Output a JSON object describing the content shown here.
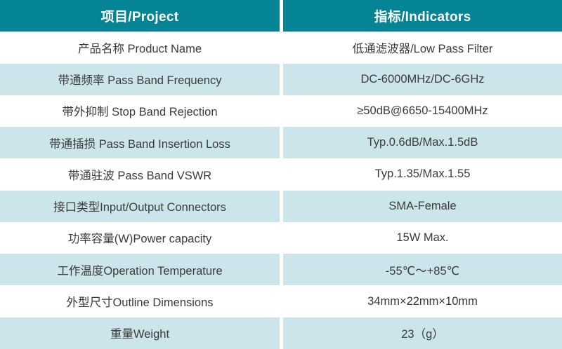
{
  "table": {
    "title_semantic": "product-specification-table",
    "colors": {
      "header_bg": "#048494",
      "header_text": "#ffffff",
      "row_alt_bg": "#cbe5ea",
      "row_bg": "#ffffff",
      "body_text": "#3b3b3b",
      "divider": "#ffffff"
    },
    "header": {
      "project": "项目/Project",
      "indicator": "指标/Indicators"
    },
    "rows": [
      {
        "project": "产品名称 Product Name",
        "indicator": "低通滤波器/Low Pass Filter"
      },
      {
        "project": "带通频率 Pass Band Frequency",
        "indicator": "DC-6000MHz/DC-6GHz"
      },
      {
        "project": "带外抑制 Stop Band Rejection",
        "indicator": "≥50dB@6650-15400MHz"
      },
      {
        "project": "带通插损 Pass Band Insertion Loss",
        "indicator": "Typ.0.6dB/Max.1.5dB"
      },
      {
        "project": "带通驻波 Pass Band VSWR",
        "indicator": "Typ.1.35/Max.1.55"
      },
      {
        "project": "接口类型Input/Output Connectors",
        "indicator": "SMA-Female"
      },
      {
        "project": "功率容量(W)Power capacity",
        "indicator": "15W Max."
      },
      {
        "project": "工作温度Operation Temperature",
        "indicator": "-55℃～+85℃"
      },
      {
        "project": "外型尺寸Outline Dimensions",
        "indicator": "34mm×22mm×10mm"
      },
      {
        "project": "重量Weight",
        "indicator": "23（g）"
      }
    ]
  }
}
